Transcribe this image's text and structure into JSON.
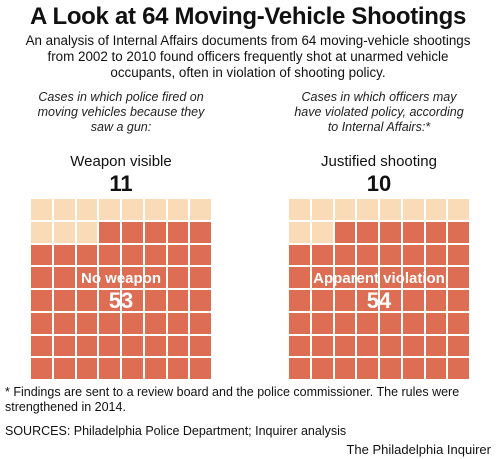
{
  "title": "A Look at 64 Moving-Vehicle Shootings",
  "intro": "An analysis of Internal Affairs documents from 64 moving-vehicle shootings from 2002 to 2010 found officers frequently shot at unarmed vehicle occupants, often in violation of shooting policy.",
  "colors": {
    "highlight": "#f9dcb7",
    "base": "#dd6e53"
  },
  "chart_data": [
    {
      "type": "waffle",
      "caption": "Cases in which police fired on moving vehicles because they saw a gun:",
      "total": 64,
      "grid": [
        8,
        8
      ],
      "highlight": {
        "label": "Weapon visible",
        "value": 11
      },
      "base": {
        "label": "No weapon",
        "value": 53
      }
    },
    {
      "type": "waffle",
      "caption": "Cases in which officers may have violated policy, according to Internal Affairs:*",
      "total": 64,
      "grid": [
        8,
        8
      ],
      "highlight": {
        "label": "Justified shooting",
        "value": 10
      },
      "base": {
        "label": "Apparent violation",
        "value": 54
      }
    }
  ],
  "footnote": "* Findings are sent to a review board and the police commissioner. The rules were strengthened in 2014.",
  "sources": "SOURCES: Philadelphia Police Department; Inquirer analysis",
  "credit": "The Philadelphia Inquirer"
}
